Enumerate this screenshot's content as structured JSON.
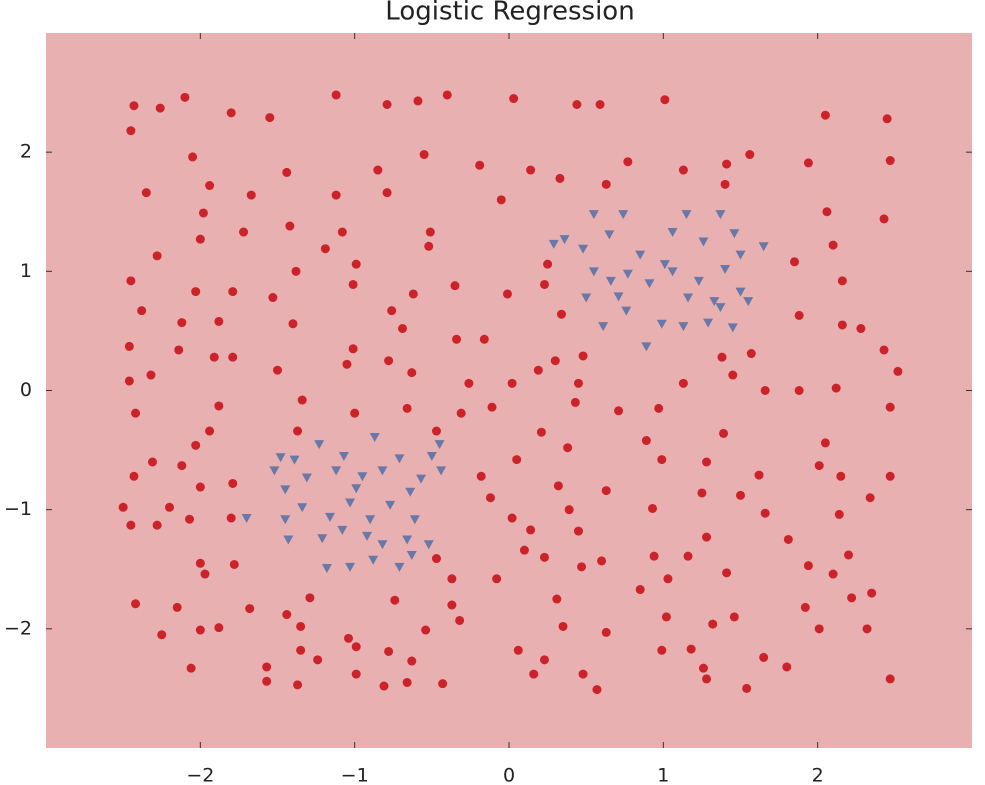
{
  "chart_data": {
    "type": "scatter",
    "title": "Logistic Regression",
    "xlim": [
      -3,
      3
    ],
    "ylim": [
      -3,
      3
    ],
    "xticks": [
      {
        "value": -2,
        "label": "−2"
      },
      {
        "value": -1,
        "label": "−1"
      },
      0,
      1,
      2
    ],
    "yticks": [
      {
        "value": -2,
        "label": "−2"
      },
      {
        "value": -1,
        "label": "−1"
      },
      0,
      1,
      2
    ],
    "region_color": "#e8b0b0",
    "series": [
      {
        "color": "#cc2229",
        "marker": "circle",
        "x": [
          -2.43,
          -2.26,
          -2.1,
          -1.8,
          -1.55,
          -1.12,
          -0.79,
          -0.59,
          -0.4,
          0.03,
          0.44,
          0.59,
          1.01,
          2.05,
          2.45,
          -2.45,
          -2.05,
          -1.44,
          -0.85,
          -0.55,
          -0.19,
          0.14,
          0.33,
          0.77,
          1.13,
          1.41,
          1.56,
          1.94,
          2.47,
          -2.35,
          -1.94,
          -1.67,
          -1.12,
          -0.79,
          -0.05,
          0.63,
          1.4,
          2.06,
          2.43,
          -1.98,
          -1.72,
          -1.42,
          -1.08,
          -0.51,
          -2.28,
          -2.0,
          -1.19,
          -0.99,
          -0.52,
          0.25,
          1.85,
          2.1,
          2.16,
          -2.45,
          -2.03,
          -1.79,
          -1.53,
          -1.38,
          -1.01,
          -0.62,
          -0.35,
          -0.01,
          0.23,
          0.34,
          1.88,
          2.16,
          2.28,
          -2.38,
          -2.12,
          -1.88,
          -1.4,
          -0.76,
          -0.69,
          -0.34,
          -0.16,
          -2.46,
          -2.14,
          -1.91,
          -1.79,
          -1.01,
          -0.78,
          0.3,
          0.48,
          1.38,
          1.57,
          2.43,
          -2.46,
          -2.32,
          -1.5,
          -1.05,
          -0.63,
          -0.26,
          0.02,
          0.19,
          0.45,
          1.13,
          1.45,
          2.52,
          -2.42,
          -1.88,
          -1.34,
          -1.0,
          -0.66,
          -0.31,
          -0.11,
          0.43,
          0.71,
          0.97,
          1.66,
          1.88,
          2.12,
          2.47,
          -1.94,
          -1.37,
          -0.47,
          0.21,
          0.38,
          0.89,
          1.39,
          2.05,
          -2.31,
          -2.03,
          -2.12,
          -0.18,
          0.05,
          0.99,
          1.28,
          1.62,
          2.01,
          2.15,
          2.47,
          -2.43,
          -2.0,
          -1.79,
          -0.12,
          0.32,
          0.63,
          1.25,
          1.5,
          2.34,
          -2.5,
          -2.2,
          -1.8,
          0.02,
          0.39,
          0.93,
          1.66,
          2.14,
          -2.45,
          -2.28,
          -2.07,
          0.14,
          0.45,
          1.28,
          1.81,
          -0.47,
          0.1,
          0.23,
          0.6,
          0.94,
          1.16,
          1.94,
          2.2,
          -2.0,
          -1.78,
          -0.37,
          -0.08,
          0.47,
          1.03,
          1.41,
          2.1,
          -1.97,
          -2.42,
          -2.15,
          -1.68,
          -1.29,
          -0.74,
          -0.37,
          0.31,
          0.85,
          1.92,
          2.22,
          2.35,
          -2.25,
          -2.0,
          -1.88,
          -1.44,
          -1.35,
          -1.04,
          -0.54,
          -0.32,
          0.35,
          0.63,
          1.02,
          1.32,
          1.46,
          2.01,
          2.32,
          -1.35,
          -0.99,
          -0.78,
          -0.63,
          0.06,
          0.99,
          1.18,
          1.65,
          -2.06,
          -1.57,
          -1.24,
          -0.99,
          0.23,
          0.48,
          1.26,
          1.8,
          -1.57,
          -1.37,
          -0.81,
          -0.66,
          -0.43,
          0.16,
          0.57,
          1.28,
          1.54,
          2.47
        ],
        "y": [
          2.39,
          2.37,
          2.46,
          2.33,
          2.29,
          2.48,
          2.4,
          2.43,
          2.48,
          2.45,
          2.4,
          2.4,
          2.44,
          2.31,
          2.28,
          2.18,
          1.96,
          1.83,
          1.85,
          1.98,
          1.89,
          1.85,
          1.78,
          1.92,
          1.85,
          1.9,
          1.98,
          1.91,
          1.93,
          1.66,
          1.72,
          1.64,
          1.64,
          1.66,
          1.6,
          1.73,
          1.73,
          1.5,
          1.44,
          1.49,
          1.33,
          1.38,
          1.33,
          1.33,
          1.13,
          1.27,
          1.19,
          1.06,
          1.21,
          1.06,
          1.08,
          1.22,
          0.92,
          0.92,
          0.83,
          0.83,
          0.78,
          1.0,
          0.89,
          0.81,
          0.88,
          0.81,
          0.89,
          0.64,
          0.63,
          0.55,
          0.52,
          0.67,
          0.57,
          0.58,
          0.56,
          0.67,
          0.52,
          0.43,
          0.43,
          0.37,
          0.34,
          0.28,
          0.28,
          0.35,
          0.25,
          0.25,
          0.29,
          0.28,
          0.31,
          0.34,
          0.08,
          0.13,
          0.17,
          0.22,
          0.15,
          0.06,
          0.06,
          0.17,
          0.06,
          0.06,
          0.13,
          0.16,
          -0.19,
          -0.13,
          -0.08,
          -0.19,
          -0.15,
          -0.19,
          -0.14,
          -0.1,
          -0.17,
          -0.15,
          0.0,
          0.0,
          0.02,
          -0.14,
          -0.34,
          -0.34,
          -0.34,
          -0.35,
          -0.48,
          -0.42,
          -0.36,
          -0.44,
          -0.6,
          -0.46,
          -0.63,
          -0.72,
          -0.58,
          -0.58,
          -0.6,
          -0.71,
          -0.63,
          -0.72,
          -0.72,
          -0.72,
          -0.81,
          -0.78,
          -0.9,
          -0.8,
          -0.84,
          -0.86,
          -0.88,
          -0.9,
          -0.98,
          -0.98,
          -1.07,
          -1.07,
          -1.0,
          -0.99,
          -1.03,
          -1.04,
          -1.13,
          -1.13,
          -1.08,
          -1.17,
          -1.18,
          -1.23,
          -1.25,
          -1.41,
          -1.34,
          -1.4,
          -1.43,
          -1.39,
          -1.39,
          -1.47,
          -1.38,
          -1.45,
          -1.46,
          -1.58,
          -1.58,
          -1.48,
          -1.58,
          -1.53,
          -1.54,
          -1.54,
          -1.79,
          -1.82,
          -1.83,
          -1.74,
          -1.76,
          -1.8,
          -1.75,
          -1.67,
          -1.82,
          -1.74,
          -1.7,
          -2.05,
          -2.01,
          -1.99,
          -1.88,
          -1.98,
          -2.08,
          -2.01,
          -1.93,
          -1.98,
          -2.03,
          -1.9,
          -1.96,
          -1.9,
          -2.0,
          -2.0,
          -2.18,
          -2.15,
          -2.19,
          -2.27,
          -2.18,
          -2.18,
          -2.17,
          -2.24,
          -2.33,
          -2.32,
          -2.26,
          -2.38,
          -2.26,
          -2.38,
          -2.33,
          -2.32,
          -2.44,
          -2.47,
          -2.48,
          -2.45,
          -2.46,
          -2.38,
          -2.51,
          -2.42,
          -2.5,
          -2.42
        ]
      },
      {
        "color": "#6878a8",
        "marker": "triangle-down",
        "x": [
          0.36,
          0.55,
          0.74,
          0.65,
          0.48,
          0.55,
          0.66,
          0.5,
          0.61,
          0.76,
          0.89,
          0.99,
          0.91,
          1.01,
          1.06,
          1.15,
          1.26,
          1.37,
          1.46,
          1.5,
          1.4,
          1.5,
          1.33,
          1.45,
          1.29,
          1.16,
          1.06,
          1.65,
          0.77,
          0.85,
          0.71,
          1.23,
          1.13,
          1.37,
          1.55,
          0.29,
          -1.48,
          -1.39,
          -1.23,
          -1.07,
          -0.87,
          -0.71,
          -0.5,
          -0.45,
          -1.45,
          -1.31,
          -1.12,
          -0.95,
          -0.82,
          -0.64,
          -0.57,
          -1.7,
          -1.45,
          -1.34,
          -1.16,
          -1.03,
          -0.9,
          -0.77,
          -0.61,
          -1.43,
          -1.21,
          -1.08,
          -0.92,
          -0.82,
          -0.66,
          -0.52,
          -1.18,
          -1.03,
          -0.88,
          -0.71,
          -0.63,
          -0.44,
          -1.52,
          -0.99
        ],
        "y": [
          1.27,
          1.48,
          1.48,
          1.31,
          1.19,
          1.0,
          0.92,
          0.78,
          0.54,
          0.67,
          0.37,
          0.56,
          0.9,
          1.06,
          1.33,
          1.48,
          1.25,
          1.48,
          1.32,
          1.14,
          1.02,
          0.83,
          0.75,
          0.53,
          0.57,
          0.78,
          1.0,
          1.21,
          0.98,
          1.14,
          0.79,
          0.92,
          0.54,
          0.7,
          0.75,
          1.23,
          -0.56,
          -0.58,
          -0.45,
          -0.55,
          -0.39,
          -0.57,
          -0.55,
          -0.45,
          -0.83,
          -0.73,
          -0.67,
          -0.72,
          -0.67,
          -0.85,
          -0.74,
          -1.07,
          -1.08,
          -0.98,
          -1.06,
          -0.94,
          -1.08,
          -0.96,
          -1.08,
          -1.25,
          -1.24,
          -1.17,
          -1.22,
          -1.29,
          -1.25,
          -1.29,
          -1.49,
          -1.48,
          -1.42,
          -1.48,
          -1.38,
          -0.67,
          -0.67,
          -0.82
        ]
      }
    ]
  }
}
